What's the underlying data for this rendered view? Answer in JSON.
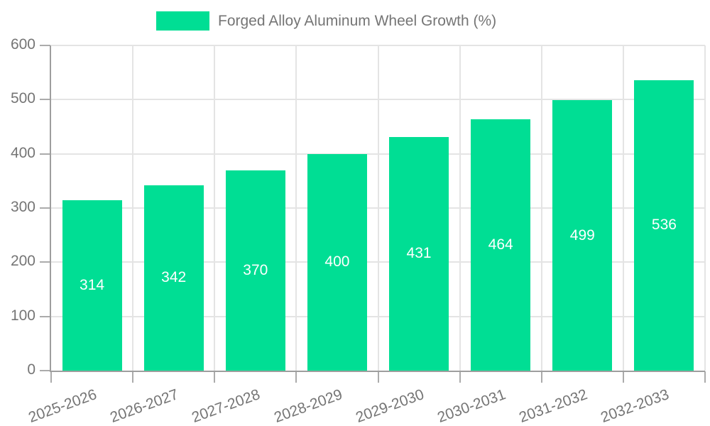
{
  "legend": {
    "label": "Forged Alloy Aluminum Wheel Growth (%)"
  },
  "chart_data": {
    "type": "bar",
    "title": "",
    "categories": [
      "2025-2026",
      "2026-2027",
      "2027-2028",
      "2028-2029",
      "2029-2030",
      "2030-2031",
      "2031-2032",
      "2032-2033"
    ],
    "values": [
      314,
      342,
      370,
      400,
      431,
      464,
      499,
      536
    ],
    "series_name": "Forged Alloy Aluminum Wheel Growth (%)",
    "xlabel": "",
    "ylabel": "",
    "ylim": [
      0,
      600
    ],
    "yticks": [
      0,
      100,
      200,
      300,
      400,
      500,
      600
    ],
    "grid": true,
    "legend_position": "top",
    "value_labels": "inside-center",
    "x_label_rotation_deg": -20
  },
  "colors": {
    "bar": "#00de94",
    "axis_line": "#9e9e9e",
    "grid_line": "#e4e4e4",
    "tick": "#ababab",
    "axis_text": "#757575",
    "value_label_text": "#ffffff",
    "background": "#ffffff"
  }
}
